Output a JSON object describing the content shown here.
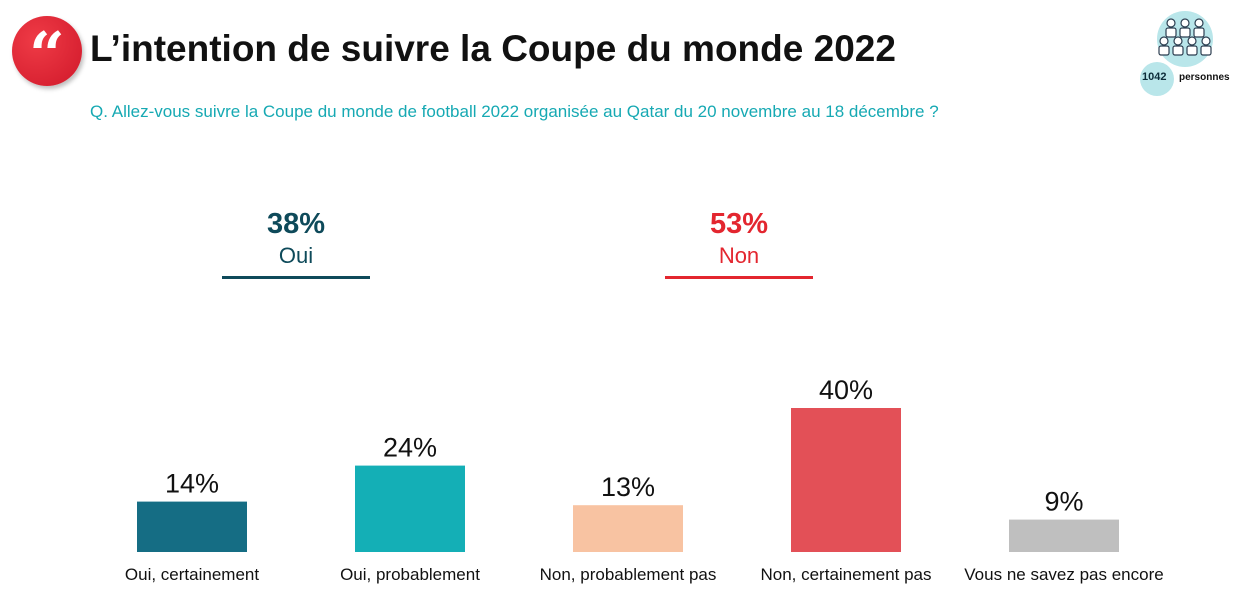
{
  "header": {
    "title": "L’intention de suivre la Coupe du monde 2022",
    "question": "Q. Allez-vous suivre la Coupe du monde de football 2022 organisée au Qatar du 20 novembre au 18 décembre ?",
    "logo_icon": "quote-icon",
    "sample": {
      "count": "1042",
      "unit": "personnes",
      "icon": "people-group-icon"
    }
  },
  "summary": {
    "oui": {
      "value": "38%",
      "label": "Oui",
      "color": "#0e4a5a"
    },
    "non": {
      "value": "53%",
      "label": "Non",
      "color": "#e3262f"
    }
  },
  "chart_data": {
    "type": "bar",
    "categories": [
      "Oui, certainement",
      "Oui, probablement",
      "Non, probablement pas",
      "Non, certainement pas",
      "Vous ne savez pas encore"
    ],
    "values": [
      14,
      24,
      13,
      40,
      9
    ],
    "value_labels": [
      "14%",
      "24%",
      "13%",
      "40%",
      "9%"
    ],
    "colors": [
      "#156d84",
      "#14afb6",
      "#f8c3a2",
      "#e35057",
      "#bfbfbf"
    ],
    "ylim": [
      0,
      40
    ],
    "grid": false,
    "legend": "none"
  }
}
